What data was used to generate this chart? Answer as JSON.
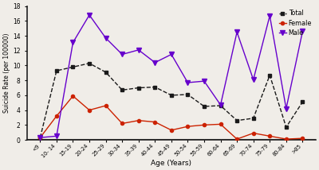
{
  "categories": [
    "<9",
    "10- 14",
    "15-19",
    "20-24",
    "25-29",
    "30-34",
    "35-39",
    "40-44",
    "45-49",
    "50-54",
    "55-59",
    "60-64",
    "65-69",
    "70-74",
    "75-79",
    "80-84",
    ">85"
  ],
  "total": [
    0.3,
    9.3,
    9.8,
    10.3,
    9.1,
    6.7,
    7.0,
    7.1,
    6.0,
    6.1,
    4.5,
    4.6,
    2.6,
    2.9,
    8.7,
    1.7,
    5.1
  ],
  "female": [
    0.3,
    3.2,
    5.9,
    4.0,
    4.6,
    2.2,
    2.6,
    2.4,
    1.3,
    1.8,
    2.0,
    2.1,
    0.1,
    0.9,
    0.5,
    0.1,
    0.2
  ],
  "male": [
    0.3,
    0.5,
    13.1,
    16.8,
    13.7,
    11.5,
    12.1,
    10.4,
    11.5,
    7.7,
    7.9,
    4.7,
    14.5,
    8.1,
    16.7,
    4.2,
    14.6
  ],
  "ylabel": "Suicide Rate (per 100000)",
  "xlabel": "Age (Years)",
  "ylim": [
    0,
    18
  ],
  "yticks": [
    0,
    2,
    4,
    6,
    8,
    10,
    12,
    14,
    16,
    18
  ],
  "total_color": "#1a1a1a",
  "female_color": "#cc2200",
  "male_color": "#6600cc",
  "bg_color": "#f0ede8"
}
